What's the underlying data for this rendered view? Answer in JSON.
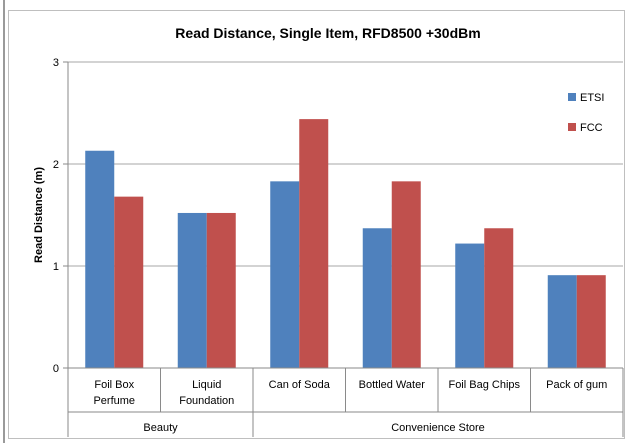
{
  "chart_data": {
    "type": "bar",
    "title": "Read Distance, Single Item, RFD8500  +30dBm",
    "xlabel": "",
    "ylabel": "Read Distance (m)",
    "ylim": [
      0,
      3
    ],
    "yticks": [
      "0",
      "1",
      "2",
      "3"
    ],
    "grid": true,
    "legend_position": "right",
    "categories": [
      [
        "Foil Box",
        "Perfume"
      ],
      [
        "Liquid",
        "Foundation"
      ],
      [
        "Can of Soda"
      ],
      [
        "Bottled Water"
      ],
      [
        "Foil Bag Chips"
      ],
      [
        "Pack of gum"
      ]
    ],
    "groups": [
      {
        "label": "Beauty",
        "count": 2
      },
      {
        "label": "Convenience Store",
        "count": 4
      }
    ],
    "series": [
      {
        "name": "ETSI",
        "color": "#4f81bd",
        "values": [
          2.13,
          1.52,
          1.83,
          1.37,
          1.22,
          0.91
        ]
      },
      {
        "name": "FCC",
        "color": "#c0504d",
        "values": [
          1.68,
          1.52,
          2.44,
          1.83,
          1.37,
          0.91
        ]
      }
    ]
  }
}
